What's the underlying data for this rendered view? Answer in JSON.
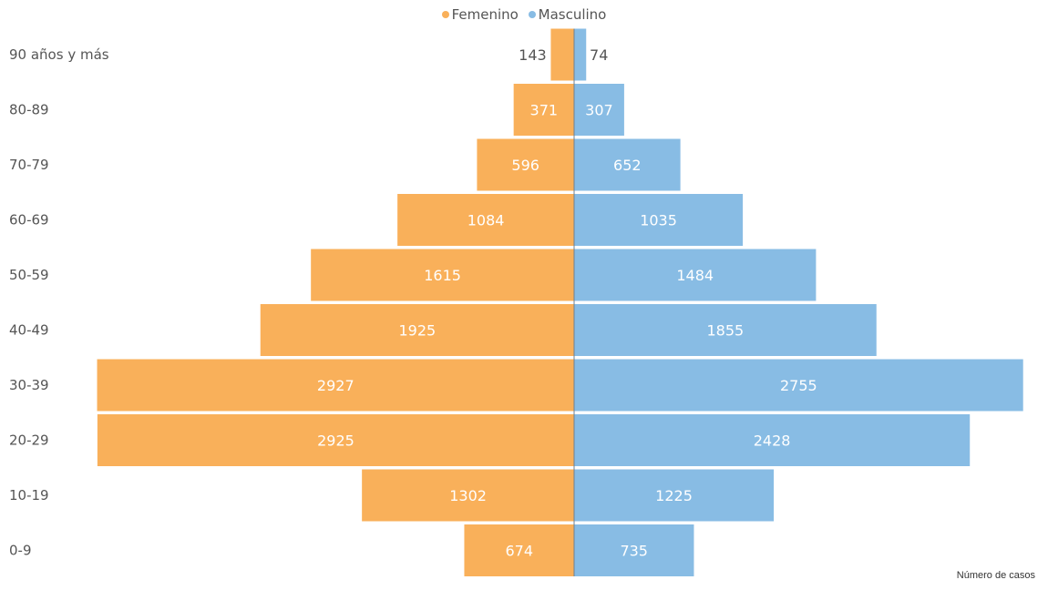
{
  "chart_data": {
    "type": "bar",
    "orientation": "horizontal",
    "layout": "population-pyramid",
    "categories": [
      "90 años y más",
      "80-89",
      "70-79",
      "60-69",
      "50-59",
      "40-49",
      "30-39",
      "20-29",
      "10-19",
      "0-9"
    ],
    "series": [
      {
        "name": "Femenino",
        "color": "#F9B05A",
        "side": "left",
        "values": [
          143,
          371,
          596,
          1084,
          1615,
          1925,
          2927,
          2925,
          1302,
          674
        ]
      },
      {
        "name": "Masculino",
        "color": "#88BCE4",
        "side": "right",
        "values": [
          74,
          307,
          652,
          1035,
          1484,
          1855,
          2755,
          2428,
          1225,
          735
        ]
      }
    ],
    "xlabel": "Número de casos",
    "legend_position": "top-center",
    "xlim": [
      0,
      2930
    ],
    "grid": false
  }
}
